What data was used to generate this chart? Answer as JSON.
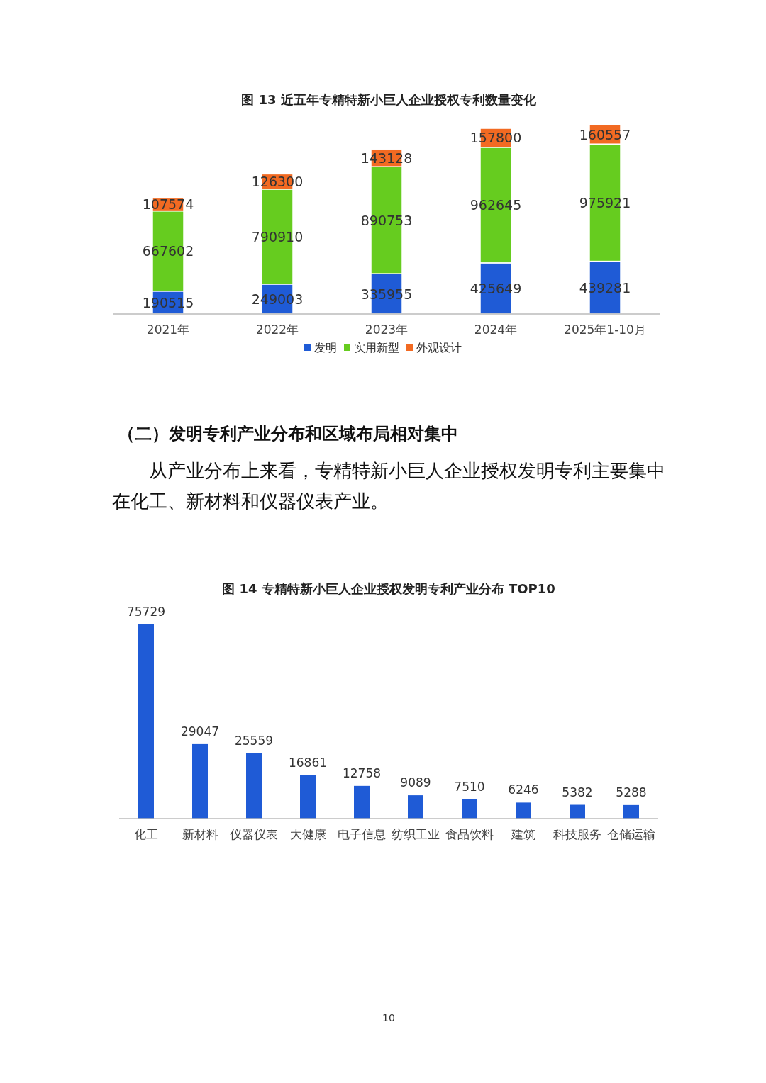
{
  "chart_data": [
    {
      "type": "bar",
      "title": "图 13  近五年专精特新小巨人企业授权专利数量变化",
      "categories": [
        "2021年",
        "2022年",
        "2023年",
        "2024年",
        "2025年1-10月"
      ],
      "stacked": true,
      "data_labels": true,
      "tick_labels": "x",
      "legend": "bottom",
      "series": [
        {
          "name": "发明",
          "color": "#1f5bd6",
          "values": [
            190515,
            249003,
            335955,
            425649,
            439281
          ]
        },
        {
          "name": "实用新型",
          "color": "#66cc1f",
          "values": [
            667602,
            790910,
            890753,
            962645,
            975921
          ]
        },
        {
          "name": "外观设计",
          "color": "#f26a22",
          "values": [
            107574,
            126300,
            143128,
            157800,
            160557
          ]
        }
      ]
    },
    {
      "type": "other",
      "title": "（二）发明专利产业分布和区域布局相对集中",
      "annotations": [
        "从产业分布上来看，专精特新小巨人企业授权发明专利主要集中在化工、新材料和仪器仪表产业。"
      ]
    },
    {
      "type": "bar",
      "title": "图 14  专精特新小巨人企业授权发明专利产业分布 TOP10",
      "categories": [
        "化工",
        "新材料",
        "仪器仪表",
        "大健康",
        "电子信息",
        "纺织工业",
        "食品饮料",
        "建筑",
        "科技服务",
        "仓储运输"
      ],
      "values": [
        75729,
        29047,
        25559,
        16861,
        12758,
        9089,
        7510,
        6246,
        5382,
        5288
      ],
      "color": "#1f5bd6",
      "data_labels": true,
      "tick_labels": "x",
      "annotations": [
        "10"
      ]
    }
  ]
}
